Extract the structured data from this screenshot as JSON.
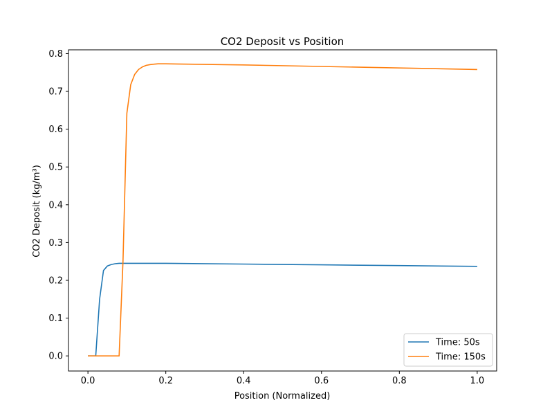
{
  "chart_data": {
    "type": "line",
    "title": "CO2 Deposit vs Position",
    "xlabel": "Position (Normalized)",
    "ylabel": "CO2 Deposit (kg/m³)",
    "xlim": [
      -0.05,
      1.05
    ],
    "ylim": [
      -0.04,
      0.81
    ],
    "xticks": [
      0.0,
      0.2,
      0.4,
      0.6,
      0.8,
      1.0
    ],
    "xtick_labels": [
      "0.0",
      "0.2",
      "0.4",
      "0.6",
      "0.8",
      "1.0"
    ],
    "yticks": [
      0.0,
      0.1,
      0.2,
      0.3,
      0.4,
      0.5,
      0.6,
      0.7,
      0.8
    ],
    "ytick_labels": [
      "0.0",
      "0.1",
      "0.2",
      "0.3",
      "0.4",
      "0.5",
      "0.6",
      "0.7",
      "0.8"
    ],
    "grid": false,
    "legend_position": "bottom-right",
    "series": [
      {
        "name": "Time: 50s",
        "color": "#1f77b4",
        "x": [
          0.0,
          0.01,
          0.02,
          0.03,
          0.04,
          0.05,
          0.06,
          0.07,
          0.08,
          0.1,
          0.2,
          0.4,
          0.6,
          0.8,
          1.0
        ],
        "y": [
          0.0,
          0.0,
          0.0,
          0.15,
          0.226,
          0.238,
          0.242,
          0.244,
          0.245,
          0.245,
          0.245,
          0.243,
          0.241,
          0.239,
          0.237
        ]
      },
      {
        "name": "Time: 150s",
        "color": "#ff7f0e",
        "x": [
          0.0,
          0.02,
          0.04,
          0.06,
          0.08,
          0.09,
          0.1,
          0.11,
          0.12,
          0.13,
          0.14,
          0.15,
          0.16,
          0.17,
          0.18,
          0.2,
          0.4,
          0.6,
          0.8,
          1.0
        ],
        "y": [
          0.0,
          0.0,
          0.0,
          0.0,
          0.0,
          0.25,
          0.642,
          0.718,
          0.745,
          0.758,
          0.765,
          0.769,
          0.771,
          0.772,
          0.773,
          0.773,
          0.77,
          0.766,
          0.762,
          0.758
        ]
      }
    ]
  }
}
